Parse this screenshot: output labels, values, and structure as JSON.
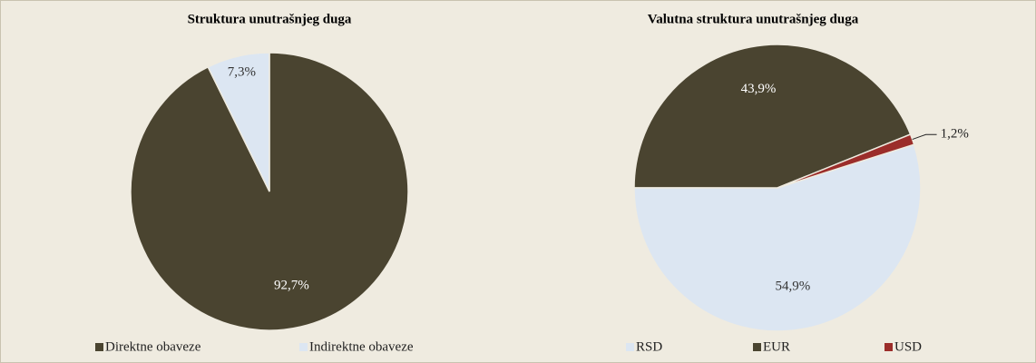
{
  "chart_data": [
    {
      "type": "pie",
      "title": "Struktura unutrašnjeg duga",
      "categories": [
        "Direktne obaveze",
        "Indirektne obaveze"
      ],
      "values": [
        92.7,
        7.3
      ],
      "value_labels": [
        "92,7%",
        "7,3%"
      ],
      "colors": [
        "#4a4430",
        "#dce6f2"
      ]
    },
    {
      "type": "pie",
      "title": "Valutna struktura unutrašnjeg duga",
      "categories": [
        "RSD",
        "EUR",
        "USD"
      ],
      "values": [
        54.9,
        43.9,
        1.2
      ],
      "value_labels": [
        "54,9%",
        "43,9%",
        "1,2%"
      ],
      "colors": [
        "#dce6f2",
        "#4a4430",
        "#9b2d2a"
      ]
    }
  ]
}
